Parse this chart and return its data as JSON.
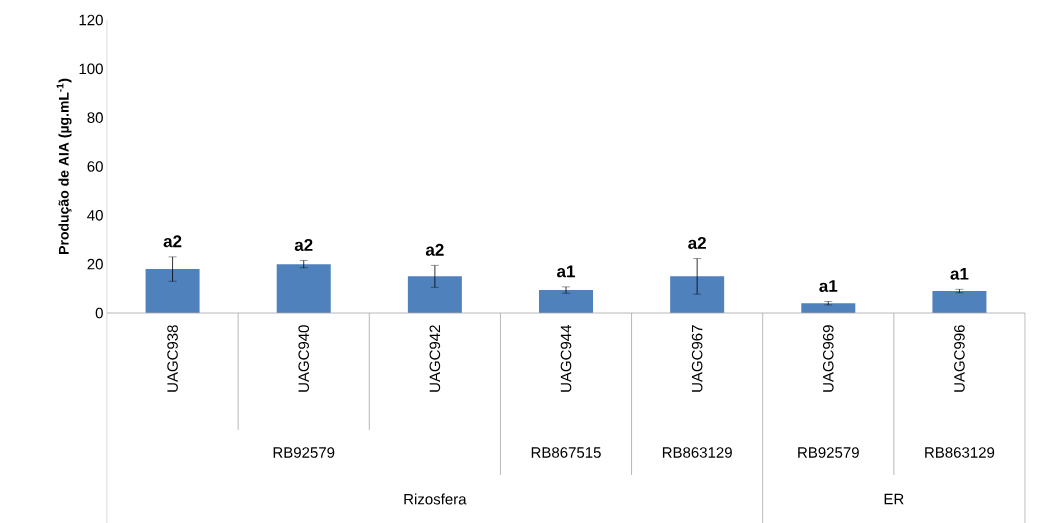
{
  "chart_data": {
    "type": "bar",
    "ylabel": "Produção de AIA (µg.mL$^{-1}$)",
    "categories": [
      "UAGC938",
      "UAGC940",
      "UAGC942",
      "UAGC944",
      "UAGC967",
      "UAGC969",
      "UAGC996"
    ],
    "values": [
      18,
      20,
      15,
      9.4,
      15,
      4,
      9
    ],
    "errors": [
      5,
      1.5,
      4.5,
      1.3,
      7.3,
      0.7,
      0.7
    ],
    "value_labels": [
      "a2",
      "a2",
      "a2",
      "a1",
      "a2",
      "a1",
      "a1"
    ],
    "color": "#4f81bd",
    "ylim": [
      0,
      120
    ],
    "yticks": [
      0,
      20,
      40,
      60,
      80,
      100,
      120
    ],
    "grid": false,
    "annotations": [
      "RB92579",
      "RB867515",
      "RB863129",
      "RB92579",
      "RB863129",
      "Rizosfera",
      "ER"
    ]
  }
}
